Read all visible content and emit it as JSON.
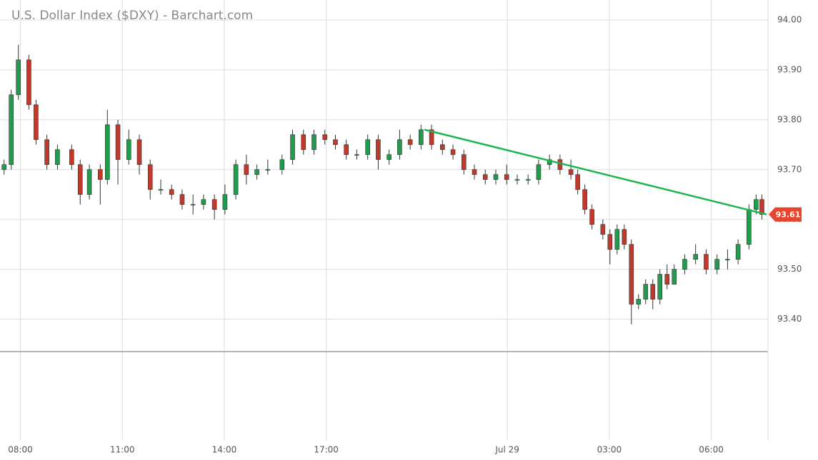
{
  "chart_data": {
    "type": "candlestick",
    "title": "U.S. Dollar Index ($DXY) - Barchart.com",
    "up_color": "#1f9d4c",
    "down_color": "#c0392b",
    "grid": true,
    "xlim": [
      7.4,
      30
    ],
    "xticks": [
      {
        "value": 8,
        "label": "08:00"
      },
      {
        "value": 11,
        "label": "11:00"
      },
      {
        "value": 14,
        "label": "14:00"
      },
      {
        "value": 17,
        "label": "17:00"
      },
      {
        "value": 22.33,
        "label": "Jul 29"
      },
      {
        "value": 25.33,
        "label": "03:00"
      },
      {
        "value": 28.33,
        "label": "06:00"
      }
    ],
    "ylim": [
      93.335,
      94.04
    ],
    "yticks": [
      {
        "value": 93.4,
        "label": "93.40"
      },
      {
        "value": 93.5,
        "label": "93.50"
      },
      {
        "value": 93.6,
        "label": "93.60"
      },
      {
        "value": 93.7,
        "label": "93.70"
      },
      {
        "value": 93.8,
        "label": "93.80"
      },
      {
        "value": 93.9,
        "label": "93.90"
      },
      {
        "value": 94.0,
        "label": "94.00"
      }
    ],
    "x": [
      7.52,
      7.73,
      7.94,
      8.25,
      8.46,
      8.78,
      9.09,
      9.51,
      9.76,
      10.03,
      10.35,
      10.56,
      10.87,
      11.19,
      11.5,
      11.82,
      12.13,
      12.45,
      12.76,
      13.08,
      13.39,
      13.71,
      14.02,
      14.34,
      14.65,
      14.96,
      15.28,
      15.7,
      16.01,
      16.33,
      16.64,
      16.96,
      17.27,
      17.59,
      17.9,
      18.22,
      18.53,
      18.85,
      19.16,
      19.47,
      19.79,
      20.1,
      20.42,
      20.73,
      21.05,
      21.36,
      21.68,
      21.99,
      22.31,
      22.62,
      22.94,
      23.25,
      23.57,
      23.88,
      24.2,
      24.4,
      24.61,
      24.82,
      25.14,
      25.35,
      25.56,
      25.77,
      25.98,
      26.19,
      26.4,
      26.61,
      26.82,
      27.03,
      27.24,
      27.55,
      27.87,
      28.18,
      28.5,
      28.81,
      29.12,
      29.44,
      29.65,
      29.82
    ],
    "open": [
      93.7,
      93.71,
      93.85,
      93.92,
      93.83,
      93.76,
      93.71,
      93.74,
      93.71,
      93.65,
      93.7,
      93.68,
      93.79,
      93.72,
      93.76,
      93.71,
      93.66,
      93.66,
      93.65,
      93.63,
      93.63,
      93.64,
      93.62,
      93.65,
      93.71,
      93.69,
      93.7,
      93.7,
      93.72,
      93.77,
      93.74,
      93.77,
      93.76,
      93.75,
      93.73,
      93.73,
      93.76,
      93.72,
      93.73,
      93.76,
      93.75,
      93.78,
      93.75,
      93.74,
      93.73,
      93.7,
      93.69,
      93.68,
      93.69,
      93.68,
      93.68,
      93.68,
      93.71,
      93.72,
      93.7,
      93.69,
      93.66,
      93.62,
      93.59,
      93.57,
      93.54,
      93.58,
      93.55,
      93.43,
      93.44,
      93.47,
      93.44,
      93.49,
      93.47,
      93.5,
      93.52,
      93.53,
      93.5,
      93.52,
      93.52,
      93.55,
      93.62,
      93.64
    ],
    "high": [
      93.72,
      93.86,
      93.95,
      93.93,
      93.84,
      93.77,
      93.75,
      93.75,
      93.72,
      93.71,
      93.71,
      93.82,
      93.8,
      93.78,
      93.77,
      93.72,
      93.68,
      93.67,
      93.66,
      93.65,
      93.65,
      93.65,
      93.67,
      93.72,
      93.73,
      93.71,
      93.72,
      93.73,
      93.78,
      93.78,
      93.78,
      93.78,
      93.77,
      93.76,
      93.74,
      93.77,
      93.77,
      93.74,
      93.78,
      93.77,
      93.79,
      93.79,
      93.76,
      93.75,
      93.74,
      93.71,
      93.7,
      93.7,
      93.71,
      93.69,
      93.69,
      93.72,
      93.73,
      93.73,
      93.72,
      93.7,
      93.67,
      93.63,
      93.6,
      93.58,
      93.59,
      93.59,
      93.56,
      93.45,
      93.48,
      93.48,
      93.5,
      93.51,
      93.51,
      93.53,
      93.55,
      93.54,
      93.53,
      93.54,
      93.56,
      93.63,
      93.65,
      93.65
    ],
    "low": [
      93.69,
      93.7,
      93.84,
      93.82,
      93.75,
      93.7,
      93.7,
      93.7,
      93.63,
      93.64,
      93.63,
      93.67,
      93.67,
      93.71,
      93.69,
      93.64,
      93.65,
      93.64,
      93.62,
      93.61,
      93.62,
      93.6,
      93.61,
      93.64,
      93.67,
      93.68,
      93.69,
      93.69,
      93.71,
      93.73,
      93.73,
      93.75,
      93.74,
      93.72,
      93.72,
      93.72,
      93.7,
      93.71,
      93.72,
      93.74,
      93.74,
      93.74,
      93.73,
      93.72,
      93.69,
      93.68,
      93.67,
      93.67,
      93.67,
      93.67,
      93.67,
      93.67,
      93.7,
      93.69,
      93.68,
      93.65,
      93.61,
      93.58,
      93.56,
      93.51,
      93.53,
      93.54,
      93.39,
      93.42,
      93.43,
      93.42,
      93.43,
      93.46,
      93.47,
      93.49,
      93.51,
      93.49,
      93.49,
      93.5,
      93.51,
      93.54,
      93.61,
      93.6
    ],
    "close": [
      93.71,
      93.85,
      93.92,
      93.83,
      93.76,
      93.71,
      93.74,
      93.71,
      93.65,
      93.7,
      93.68,
      93.79,
      93.72,
      93.76,
      93.71,
      93.66,
      93.66,
      93.65,
      93.63,
      93.63,
      93.64,
      93.62,
      93.65,
      93.71,
      93.69,
      93.7,
      93.7,
      93.72,
      93.77,
      93.74,
      93.77,
      93.76,
      93.75,
      93.73,
      93.73,
      93.76,
      93.72,
      93.73,
      93.76,
      93.75,
      93.78,
      93.75,
      93.74,
      93.73,
      93.7,
      93.69,
      93.68,
      93.69,
      93.68,
      93.68,
      93.68,
      93.71,
      93.72,
      93.7,
      93.69,
      93.66,
      93.62,
      93.59,
      93.57,
      93.54,
      93.58,
      93.55,
      93.43,
      93.44,
      93.47,
      93.44,
      93.49,
      93.47,
      93.5,
      93.52,
      93.53,
      93.5,
      93.52,
      93.52,
      93.55,
      93.62,
      93.64,
      93.61
    ],
    "trendline": {
      "color": "#1db34f",
      "x": [
        19.89,
        29.96
      ],
      "y": [
        93.78,
        93.61
      ]
    },
    "last_price": {
      "value": 93.61,
      "label": "93.61",
      "color": "#e8452c"
    }
  }
}
